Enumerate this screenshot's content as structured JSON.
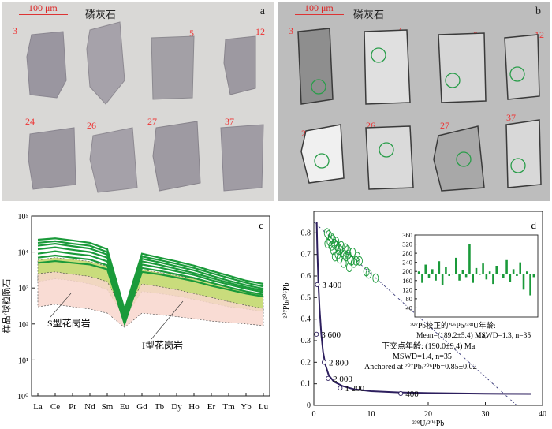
{
  "panel_a": {
    "letter": "a",
    "scale_label": "100 μm",
    "mineral": "磷灰石",
    "grain_numbers": [
      "3",
      "4",
      "5",
      "12",
      "24",
      "26",
      "27",
      "37"
    ]
  },
  "panel_b": {
    "letter": "b",
    "scale_label": "100 μm",
    "mineral": "磷灰石",
    "grain_numbers": [
      "3",
      "4",
      "5",
      "12",
      "24",
      "26",
      "27",
      "37"
    ],
    "spot_color": "#2a9d4a"
  },
  "chart_data": [
    {
      "type": "line",
      "panel": "c",
      "ylabel": "样品/球粒陨石",
      "yscale": "log",
      "ylim": [
        1,
        100000
      ],
      "categories": [
        "La",
        "Ce",
        "Pr",
        "Nd",
        "Sm",
        "Eu",
        "Gd",
        "Tb",
        "Dy",
        "Ho",
        "Er",
        "Tm",
        "Yb",
        "Lu"
      ],
      "yticks": [
        "10⁰",
        "10¹",
        "10²",
        "10³",
        "10⁴",
        "10⁵"
      ],
      "annotations": [
        "S型花岗岩",
        "I型花岗岩"
      ],
      "colors": {
        "samples": "#1a9a3a",
        "s_type": "#f8d6cc",
        "i_type": "#c9dc7c"
      },
      "series": [
        {
          "values": [
            22000,
            24000,
            21000,
            18000,
            12000,
            250,
            9000,
            7000,
            5500,
            4200,
            3000,
            2200,
            1600,
            1300
          ]
        },
        {
          "values": [
            18000,
            20000,
            17000,
            15000,
            10000,
            220,
            7500,
            6000,
            4700,
            3600,
            2600,
            1900,
            1400,
            1100
          ]
        },
        {
          "values": [
            15000,
            17000,
            14500,
            12500,
            8500,
            200,
            6500,
            5200,
            4000,
            3100,
            2200,
            1600,
            1200,
            950
          ]
        },
        {
          "values": [
            12000,
            13500,
            11500,
            10000,
            7000,
            180,
            5500,
            4400,
            3400,
            2600,
            1900,
            1400,
            1050,
            850
          ]
        },
        {
          "values": [
            9000,
            10500,
            9000,
            8000,
            5500,
            150,
            4500,
            3700,
            2900,
            2300,
            1650,
            1250,
            950,
            760
          ]
        },
        {
          "values": [
            7000,
            8000,
            7000,
            6200,
            4300,
            120,
            3600,
            3000,
            2400,
            1900,
            1400,
            1050,
            800,
            650
          ]
        },
        {
          "values": [
            5000,
            5600,
            5000,
            4500,
            3300,
            100,
            2800,
            2400,
            1950,
            1550,
            1150,
            900,
            700,
            580
          ]
        }
      ]
    },
    {
      "type": "scatter",
      "panel": "d",
      "xlabel": "²³⁸U/²⁰⁶Pb",
      "ylabel": "²⁰⁷Pb/²⁰⁶Pb",
      "xlim": [
        0,
        40
      ],
      "ylim": [
        0,
        0.9
      ],
      "xticks": [
        0,
        10,
        20,
        30,
        40
      ],
      "yticks": [
        0,
        0.1,
        0.2,
        0.3,
        0.4,
        0.5,
        0.6,
        0.7,
        0.8
      ],
      "concordia_labels": [
        {
          "age": "3 400",
          "x": 0.9,
          "y": 0.56
        },
        {
          "age": "3 600",
          "x": 0.75,
          "y": 0.33
        },
        {
          "age": "2 800",
          "x": 2.1,
          "y": 0.2
        },
        {
          "age": "2 000",
          "x": 2.8,
          "y": 0.125
        },
        {
          "age": "1 200",
          "x": 4.9,
          "y": 0.08
        },
        {
          "age": "400",
          "x": 15.5,
          "y": 0.055
        }
      ],
      "concordia": [
        [
          0.5,
          0.85
        ],
        [
          0.6,
          0.73
        ],
        [
          0.8,
          0.56
        ],
        [
          1.0,
          0.45
        ],
        [
          1.3,
          0.33
        ],
        [
          1.6,
          0.25
        ],
        [
          2.0,
          0.19
        ],
        [
          2.6,
          0.14
        ],
        [
          3.5,
          0.11
        ],
        [
          5,
          0.09
        ],
        [
          7,
          0.075
        ],
        [
          10,
          0.066
        ],
        [
          15,
          0.06
        ],
        [
          20,
          0.057
        ],
        [
          30,
          0.054
        ],
        [
          38,
          0.053
        ]
      ],
      "anchor_line": {
        "y_intercept": 0.85,
        "x_intercept": 35.5
      },
      "points": [
        {
          "x": 2.3,
          "y": 0.8
        },
        {
          "x": 2.6,
          "y": 0.79
        },
        {
          "x": 3.0,
          "y": 0.78
        },
        {
          "x": 3.3,
          "y": 0.77
        },
        {
          "x": 2.8,
          "y": 0.76
        },
        {
          "x": 3.6,
          "y": 0.75
        },
        {
          "x": 4.0,
          "y": 0.74
        },
        {
          "x": 4.3,
          "y": 0.73
        },
        {
          "x": 3.9,
          "y": 0.76
        },
        {
          "x": 4.6,
          "y": 0.72
        },
        {
          "x": 5.0,
          "y": 0.71
        },
        {
          "x": 5.3,
          "y": 0.7
        },
        {
          "x": 4.8,
          "y": 0.74
        },
        {
          "x": 5.6,
          "y": 0.69
        },
        {
          "x": 6.0,
          "y": 0.7
        },
        {
          "x": 6.3,
          "y": 0.68
        },
        {
          "x": 5.9,
          "y": 0.72
        },
        {
          "x": 6.6,
          "y": 0.67
        },
        {
          "x": 7.0,
          "y": 0.66
        },
        {
          "x": 7.4,
          "y": 0.67
        },
        {
          "x": 3.4,
          "y": 0.72
        },
        {
          "x": 4.2,
          "y": 0.7
        },
        {
          "x": 5.2,
          "y": 0.66
        },
        {
          "x": 6.2,
          "y": 0.64
        },
        {
          "x": 2.4,
          "y": 0.75
        },
        {
          "x": 3.1,
          "y": 0.74
        },
        {
          "x": 4.5,
          "y": 0.68
        },
        {
          "x": 5.5,
          "y": 0.73
        },
        {
          "x": 6.8,
          "y": 0.71
        },
        {
          "x": 7.6,
          "y": 0.69
        },
        {
          "x": 8.0,
          "y": 0.67
        },
        {
          "x": 3.7,
          "y": 0.69
        },
        {
          "x": 9.2,
          "y": 0.62
        },
        {
          "x": 9.6,
          "y": 0.61
        },
        {
          "x": 10.8,
          "y": 0.59
        }
      ],
      "point_color": "#1a9a3a",
      "line_color": "#2d1f5e",
      "lower_text": [
        "下交点年龄: (190.0±9.4) Ma",
        "MSWD=1.4, n=35",
        "Anchored at ²⁰⁷Pb/²⁰⁶Pb=0.85±0.02"
      ]
    },
    {
      "type": "bar",
      "panel": "d-inset",
      "title": "²⁰⁷Pb校正的²⁰⁶Pb/²³⁸U年龄:",
      "ylim": [
        0,
        360
      ],
      "yticks": [
        40,
        80,
        120,
        160,
        200,
        240,
        280,
        320,
        360
      ],
      "baseline": 189.2,
      "values": [
        200,
        150,
        230,
        170,
        210,
        160,
        245,
        140,
        220,
        180,
        190,
        260,
        160,
        205,
        175,
        320,
        150,
        215,
        185,
        235,
        165,
        200,
        145,
        225,
        190,
        170,
        250,
        155,
        210,
        180,
        240,
        120,
        200,
        95,
        175
      ],
      "color": "#1a9a3a",
      "text": [
        "Mean=(189.2±5.4) Ma,",
        "MSWD=1.3, n=35"
      ]
    }
  ]
}
